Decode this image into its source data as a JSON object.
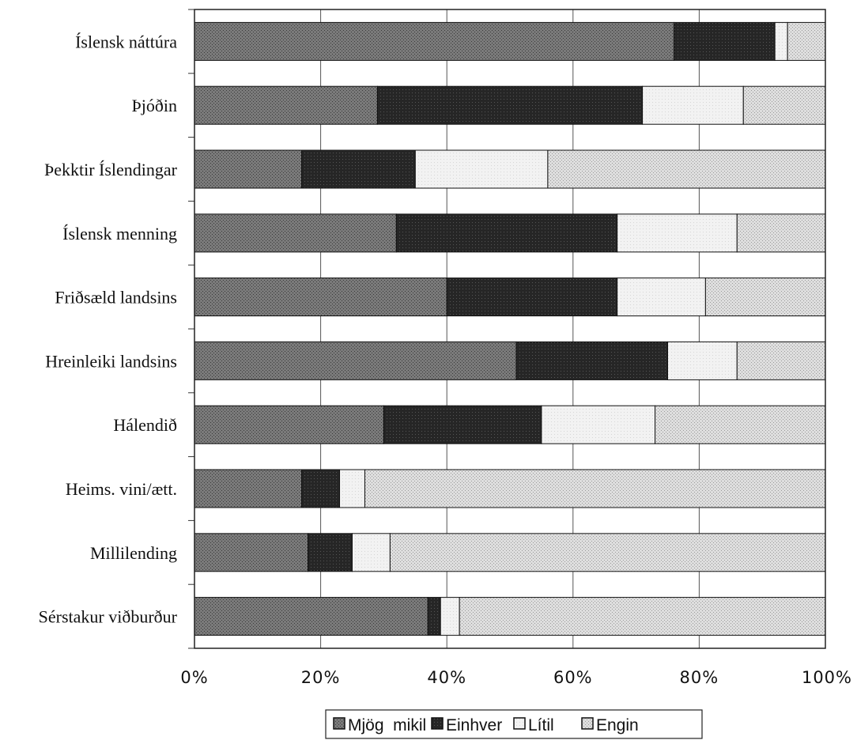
{
  "chart_data": {
    "type": "bar",
    "orientation": "horizontal",
    "stacked": "percent",
    "categories": [
      "Íslensk náttúra",
      "Þjóðin",
      "Þekktir Íslendingar",
      "Íslensk menning",
      "Friðsæld landsins",
      "Hreinleiki landsins",
      "Hálendið",
      "Heims. vini/ætt.",
      "Millilending",
      "Sérstakur viðburður"
    ],
    "series": [
      {
        "name": "Mjög  mikil",
        "color": "#6e6e6e",
        "pattern": "dots-medium",
        "values": [
          76,
          29,
          17,
          32,
          40,
          51,
          30,
          17,
          18,
          37
        ]
      },
      {
        "name": "Einhver",
        "color": "#262626",
        "pattern": "dense-dark",
        "values": [
          16,
          42,
          18,
          35,
          27,
          24,
          25,
          6,
          7,
          2
        ]
      },
      {
        "name": "Lítil",
        "color": "#efefef",
        "pattern": "light",
        "values": [
          2,
          16,
          21,
          19,
          14,
          11,
          18,
          4,
          6,
          3
        ]
      },
      {
        "name": "Engin",
        "color": "#d4d4d4",
        "pattern": "dots-light",
        "values": [
          6,
          13,
          44,
          14,
          19,
          14,
          27,
          73,
          69,
          58
        ]
      }
    ],
    "x_ticks": [
      "0%",
      "20%",
      "40%",
      "60%",
      "80%",
      "100%"
    ],
    "xlim": [
      0,
      100
    ],
    "grid": true,
    "legend": "bottom",
    "title": "",
    "xlabel": "",
    "ylabel": ""
  }
}
